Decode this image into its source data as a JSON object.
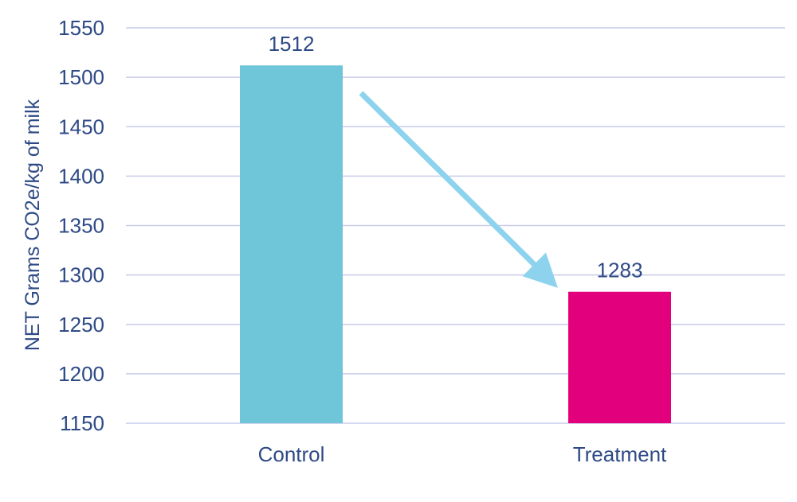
{
  "colors": {
    "text": "#2E4A86",
    "grid": "#C9CCEA",
    "control_bar": "#6FC6D8",
    "treatment_bar": "#E3007D",
    "arrow": "#8ED3EE"
  },
  "chart_data": {
    "type": "bar",
    "title": "",
    "xlabel": "",
    "ylabel": "NET Grams CO2e/kg of milk",
    "categories": [
      "Control",
      "Treatment"
    ],
    "values": [
      1512,
      1283
    ],
    "data_labels": [
      "1512",
      "1283"
    ],
    "ylim": [
      1150,
      1550
    ],
    "yticks": [
      1150,
      1200,
      1250,
      1300,
      1350,
      1400,
      1450,
      1500,
      1550
    ],
    "ytick_labels": [
      "1150",
      "1200",
      "1250",
      "1300",
      "1350",
      "1400",
      "1450",
      "1500",
      "1550"
    ],
    "grid": true,
    "legend": "none",
    "annotations": [
      {
        "type": "arrow",
        "from": "Control",
        "to": "Treatment",
        "meaning": "decrease"
      }
    ]
  }
}
